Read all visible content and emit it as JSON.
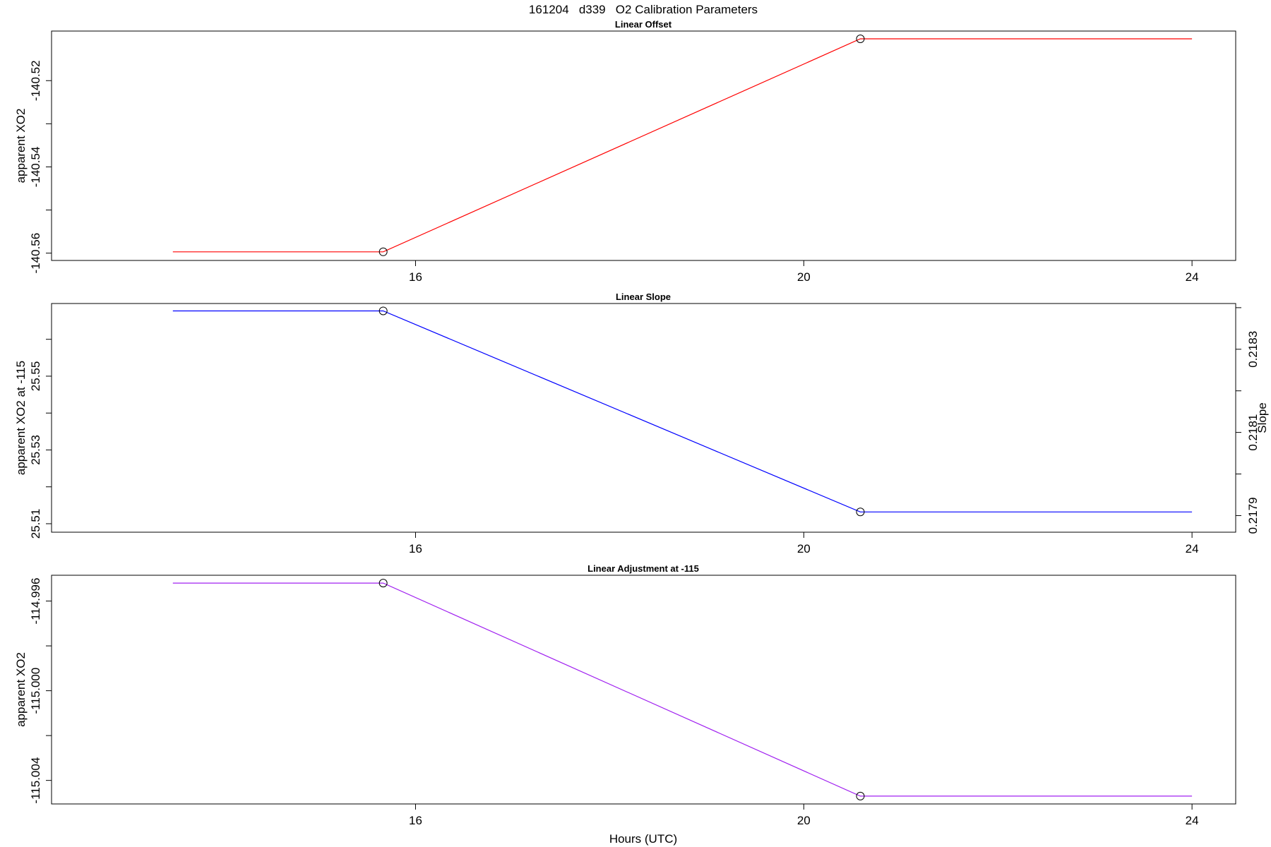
{
  "title": "161204   d339   O2 Calibration Parameters",
  "xlabel": "Hours (UTC)",
  "chart_data": [
    {
      "type": "line",
      "title": "Linear Offset",
      "ylabel": "apparent XO2",
      "x": [
        13.5,
        15.667,
        20.583,
        24.0
      ],
      "values": [
        -140.5597,
        -140.5597,
        -140.5103,
        -140.5103
      ],
      "markers_x": [
        15.667,
        20.583
      ],
      "markers_y": [
        -140.5597,
        -140.5103
      ],
      "color": "#ff0000",
      "xlim": [
        12.25,
        24.45
      ],
      "ylim": [
        -140.5617,
        -140.5085
      ],
      "x_ticks": [
        16,
        20,
        24
      ],
      "x_tick_labels": [
        "16",
        "20",
        "24"
      ],
      "y_ticks": [
        -140.56,
        -140.55,
        -140.54,
        -140.53,
        -140.52
      ],
      "y_tick_labels": [
        "-140.56",
        "",
        "-140.54",
        "",
        "-140.52"
      ]
    },
    {
      "type": "line",
      "title": "Linear Slope",
      "ylabel": "apparent XO2 at -115",
      "y2label": "Slope",
      "x": [
        13.5,
        15.667,
        20.583,
        24.0
      ],
      "values": [
        25.5677,
        25.5677,
        25.5132,
        25.5132
      ],
      "markers_x": [
        15.667,
        20.583
      ],
      "markers_y": [
        25.5677,
        25.5132
      ],
      "color": "#0000ff",
      "xlim": [
        12.25,
        24.45
      ],
      "ylim": [
        25.5077,
        25.5697
      ],
      "x_ticks": [
        16,
        20,
        24
      ],
      "x_tick_labels": [
        "16",
        "20",
        "24"
      ],
      "y_ticks": [
        25.51,
        25.52,
        25.53,
        25.54,
        25.55,
        25.56
      ],
      "y_tick_labels": [
        "25.51",
        "",
        "25.53",
        "",
        "25.55",
        ""
      ],
      "y2_ticks": [
        0.2179,
        0.218,
        0.2181,
        0.2182,
        0.2183,
        0.2184
      ],
      "y2_tick_labels": [
        "0.2179",
        "",
        "0.2181",
        "",
        "0.2183",
        ""
      ],
      "y2lim": [
        0.21786,
        0.21841
      ]
    },
    {
      "type": "line",
      "title": "Linear Adjustment at -115",
      "ylabel": "apparent XO2",
      "x": [
        13.5,
        15.667,
        20.583,
        24.0
      ],
      "values": [
        -114.9952,
        -114.9952,
        -115.0047,
        -115.0047
      ],
      "markers_x": [
        15.667,
        20.583
      ],
      "markers_y": [
        -114.9952,
        -115.0047
      ],
      "color": "#a020f0",
      "xlim": [
        12.25,
        24.45
      ],
      "ylim": [
        -115.00505,
        -114.99485
      ],
      "x_ticks": [
        16,
        20,
        24
      ],
      "x_tick_labels": [
        "16",
        "20",
        "24"
      ],
      "y_ticks": [
        -115.004,
        -115.002,
        -115.0,
        -114.998,
        -114.996
      ],
      "y_tick_labels": [
        "-115.004",
        "",
        "-115.000",
        "",
        "-114.996"
      ]
    }
  ]
}
